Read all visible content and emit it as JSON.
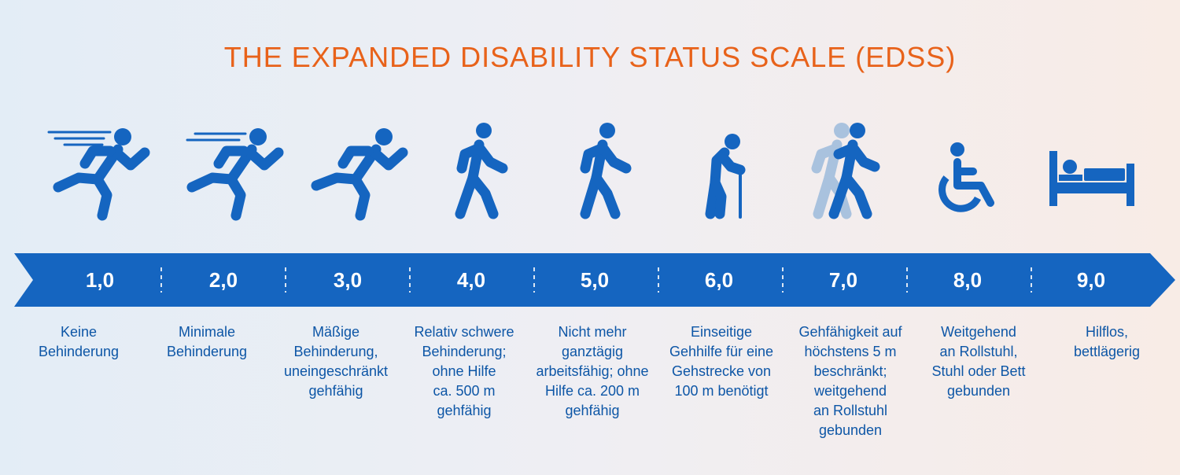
{
  "title": "THE EXPANDED DISABILITY STATUS SCALE (EDSS)",
  "colors": {
    "title": "#e8621a",
    "primary": "#1565c0",
    "text": "#0d56a6",
    "shadow": "#a9c2de"
  },
  "steps": [
    {
      "value": "1,0",
      "icon": "runner-fast-icon",
      "description": "Keine\nBehinderung"
    },
    {
      "value": "2,0",
      "icon": "runner-fast-icon",
      "description": "Minimale\nBehinderung"
    },
    {
      "value": "3,0",
      "icon": "runner-icon",
      "description": "Mäßige\nBehinderung,\nuneingeschränkt\ngehfähig"
    },
    {
      "value": "4,0",
      "icon": "walker-icon",
      "description": "Relativ schwere\nBehinderung;\nohne Hilfe\nca. 500 m\ngehfähig"
    },
    {
      "value": "5,0",
      "icon": "walker-icon",
      "description": "Nicht mehr\nganztägig\narbeitsfähig; ohne\nHilfe ca. 200 m\ngehfähig"
    },
    {
      "value": "6,0",
      "icon": "cane-walker-icon",
      "description": "Einseitige\nGehhilfe für eine\nGehstrecke von\n100 m benötigt"
    },
    {
      "value": "7,0",
      "icon": "assisted-walker-icon",
      "description": "Gehfähigkeit auf\nhöchstens 5 m\nbeschränkt;\nweitgehend\nan Rollstuhl\ngebunden"
    },
    {
      "value": "8,0",
      "icon": "wheelchair-icon",
      "description": "Weitgehend\nan Rollstuhl,\nStuhl oder Bett\ngebunden"
    },
    {
      "value": "9,0",
      "icon": "bed-icon",
      "description": "Hilflos,\nbettlägerig"
    }
  ]
}
